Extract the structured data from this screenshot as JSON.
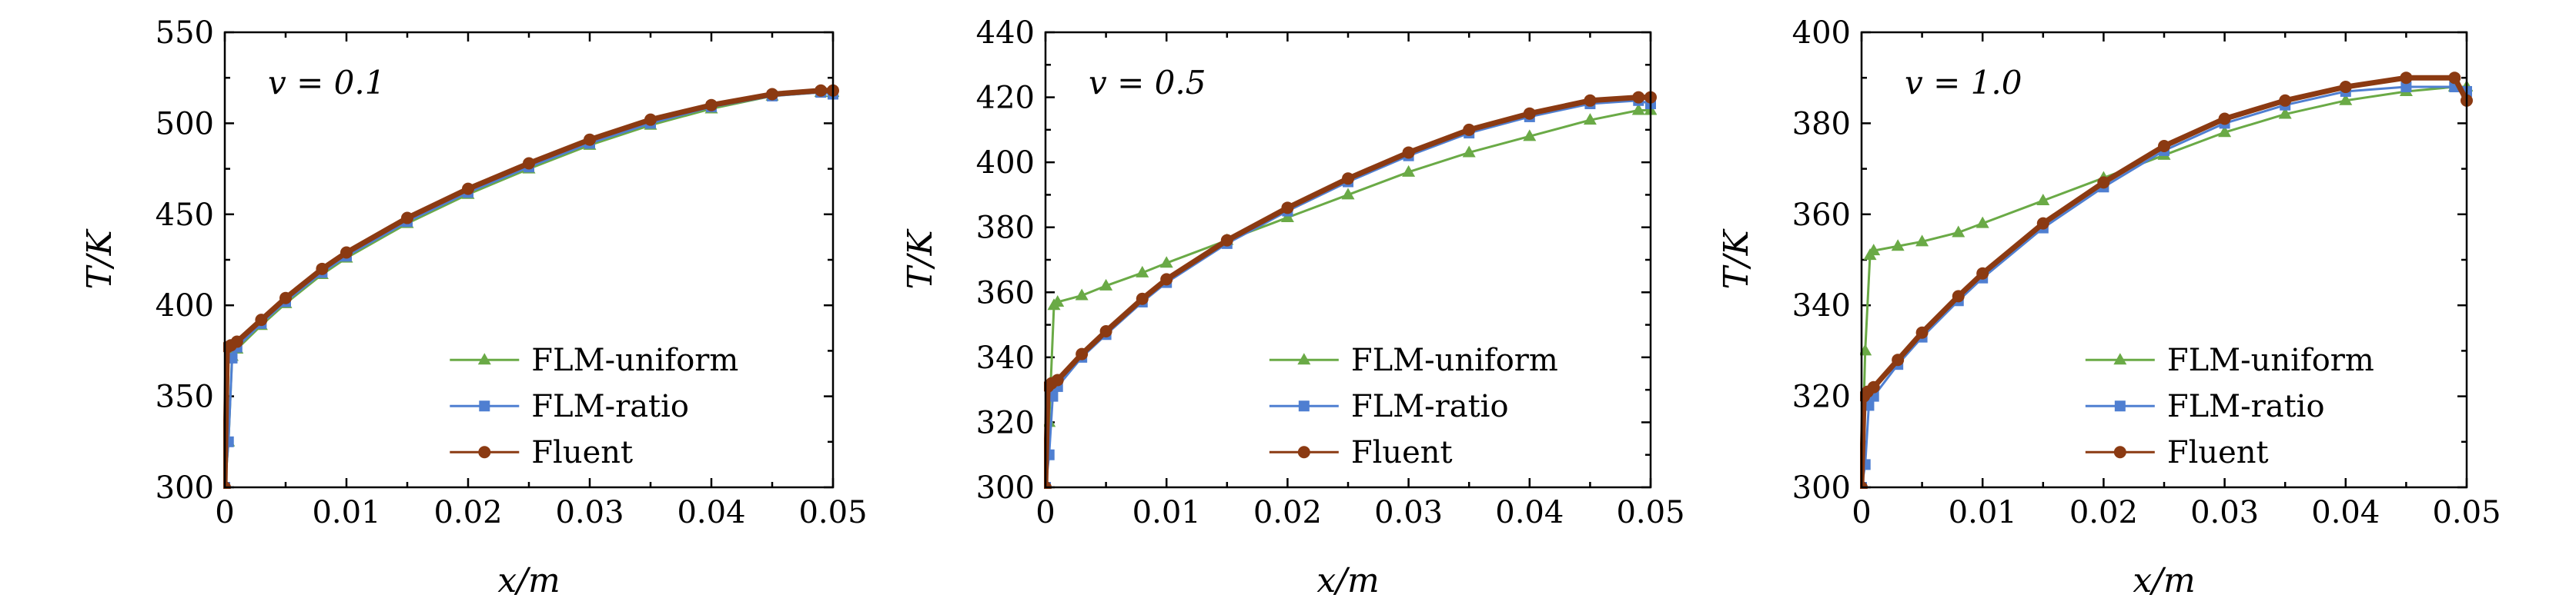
{
  "chart_data": [
    {
      "type": "line",
      "annotation": "v = 0.1",
      "xlabel": "x/m",
      "ylabel": "T/K",
      "xlim": [
        0,
        0.05
      ],
      "ylim": [
        300,
        550
      ],
      "xticks": [
        0,
        0.01,
        0.02,
        0.03,
        0.04,
        0.05
      ],
      "xtick_labels": [
        "0",
        "0.01",
        "0.02",
        "0.03",
        "0.04",
        "0.05"
      ],
      "yticks": [
        300,
        350,
        400,
        450,
        500,
        550
      ],
      "ytick_labels": [
        "300",
        "350",
        "400",
        "450",
        "500",
        "550"
      ],
      "grid": false,
      "legend_position": "bottom-right",
      "series": [
        {
          "name": "FLM-uniform",
          "color": "#6aaa46",
          "marker": "triangle",
          "x": [
            0,
            0.0003,
            0.0006,
            0.001,
            0.003,
            0.005,
            0.008,
            0.01,
            0.015,
            0.02,
            0.025,
            0.03,
            0.035,
            0.04,
            0.045,
            0.049,
            0.05
          ],
          "y": [
            300,
            325,
            372,
            376,
            389,
            401,
            417,
            426,
            445,
            461,
            475,
            488,
            499,
            508,
            515,
            517,
            517
          ]
        },
        {
          "name": "FLM-ratio",
          "color": "#4f7fd1",
          "marker": "square",
          "x": [
            0,
            0.0003,
            0.0006,
            0.001,
            0.003,
            0.005,
            0.008,
            0.01,
            0.015,
            0.02,
            0.025,
            0.03,
            0.035,
            0.04,
            0.045,
            0.049,
            0.05
          ],
          "y": [
            300,
            325,
            371,
            377,
            390,
            402,
            418,
            427,
            446,
            462,
            476,
            489,
            500,
            509,
            515,
            517,
            516
          ]
        },
        {
          "name": "Fluent",
          "color": "#8b3a12",
          "marker": "circle",
          "x": [
            0,
            0.0002,
            0.0005,
            0.001,
            0.003,
            0.005,
            0.008,
            0.01,
            0.015,
            0.02,
            0.025,
            0.03,
            0.035,
            0.04,
            0.045,
            0.049,
            0.05
          ],
          "y": [
            300,
            377,
            378,
            380,
            392,
            404,
            420,
            429,
            448,
            464,
            478,
            491,
            502,
            510,
            516,
            518,
            518
          ]
        }
      ]
    },
    {
      "type": "line",
      "annotation": "v = 0.5",
      "xlabel": "x/m",
      "ylabel": "T/K",
      "xlim": [
        0,
        0.05
      ],
      "ylim": [
        300,
        440
      ],
      "xticks": [
        0,
        0.01,
        0.02,
        0.03,
        0.04,
        0.05
      ],
      "xtick_labels": [
        "0",
        "0.01",
        "0.02",
        "0.03",
        "0.04",
        "0.05"
      ],
      "yticks": [
        300,
        320,
        340,
        360,
        380,
        400,
        420,
        440
      ],
      "ytick_labels": [
        "300",
        "320",
        "340",
        "360",
        "380",
        "400",
        "420",
        "440"
      ],
      "grid": false,
      "legend_position": "bottom-right",
      "series": [
        {
          "name": "FLM-uniform",
          "color": "#6aaa46",
          "marker": "triangle",
          "x": [
            0,
            0.0003,
            0.0007,
            0.001,
            0.003,
            0.005,
            0.008,
            0.01,
            0.015,
            0.02,
            0.025,
            0.03,
            0.035,
            0.04,
            0.045,
            0.049,
            0.05
          ],
          "y": [
            300,
            320,
            356,
            357,
            359,
            362,
            366,
            369,
            376,
            383,
            390,
            397,
            403,
            408,
            413,
            416,
            416
          ]
        },
        {
          "name": "FLM-ratio",
          "color": "#4f7fd1",
          "marker": "square",
          "x": [
            0,
            0.0003,
            0.0006,
            0.001,
            0.003,
            0.005,
            0.008,
            0.01,
            0.015,
            0.02,
            0.025,
            0.03,
            0.035,
            0.04,
            0.045,
            0.049,
            0.05
          ],
          "y": [
            300,
            310,
            328,
            331,
            340,
            347,
            357,
            363,
            375,
            385,
            394,
            402,
            409,
            414,
            418,
            419,
            418
          ]
        },
        {
          "name": "Fluent",
          "color": "#8b3a12",
          "marker": "circle",
          "x": [
            0,
            0.0002,
            0.0005,
            0.001,
            0.003,
            0.005,
            0.008,
            0.01,
            0.015,
            0.02,
            0.025,
            0.03,
            0.035,
            0.04,
            0.045,
            0.049,
            0.05
          ],
          "y": [
            300,
            331,
            332,
            333,
            341,
            348,
            358,
            364,
            376,
            386,
            395,
            403,
            410,
            415,
            419,
            420,
            420
          ]
        }
      ]
    },
    {
      "type": "line",
      "annotation": "v = 1.0",
      "xlabel": "x/m",
      "ylabel": "T/K",
      "xlim": [
        0,
        0.05
      ],
      "ylim": [
        300,
        400
      ],
      "xticks": [
        0,
        0.01,
        0.02,
        0.03,
        0.04,
        0.05
      ],
      "xtick_labels": [
        "0",
        "0.01",
        "0.02",
        "0.03",
        "0.04",
        "0.05"
      ],
      "yticks": [
        300,
        320,
        340,
        360,
        380,
        400
      ],
      "ytick_labels": [
        "300",
        "320",
        "340",
        "360",
        "380",
        "400"
      ],
      "grid": false,
      "legend_position": "bottom-right",
      "series": [
        {
          "name": "FLM-uniform",
          "color": "#6aaa46",
          "marker": "triangle",
          "x": [
            0,
            0.0003,
            0.0007,
            0.001,
            0.003,
            0.005,
            0.008,
            0.01,
            0.015,
            0.02,
            0.025,
            0.03,
            0.035,
            0.04,
            0.045,
            0.049,
            0.05
          ],
          "y": [
            300,
            330,
            351,
            352,
            353,
            354,
            356,
            358,
            363,
            368,
            373,
            378,
            382,
            385,
            387,
            388,
            388
          ]
        },
        {
          "name": "FLM-ratio",
          "color": "#4f7fd1",
          "marker": "square",
          "x": [
            0,
            0.0003,
            0.0006,
            0.001,
            0.003,
            0.005,
            0.008,
            0.01,
            0.015,
            0.02,
            0.025,
            0.03,
            0.035,
            0.04,
            0.045,
            0.049,
            0.05
          ],
          "y": [
            300,
            305,
            318,
            320,
            327,
            333,
            341,
            346,
            357,
            366,
            374,
            380,
            384,
            387,
            388,
            388,
            387
          ]
        },
        {
          "name": "Fluent",
          "color": "#8b3a12",
          "marker": "circle",
          "x": [
            0,
            0.0002,
            0.0005,
            0.001,
            0.003,
            0.005,
            0.008,
            0.01,
            0.015,
            0.02,
            0.025,
            0.03,
            0.035,
            0.04,
            0.045,
            0.049,
            0.05
          ],
          "y": [
            300,
            320,
            321,
            322,
            328,
            334,
            342,
            347,
            358,
            367,
            375,
            381,
            385,
            388,
            390,
            390,
            385
          ]
        }
      ]
    }
  ]
}
